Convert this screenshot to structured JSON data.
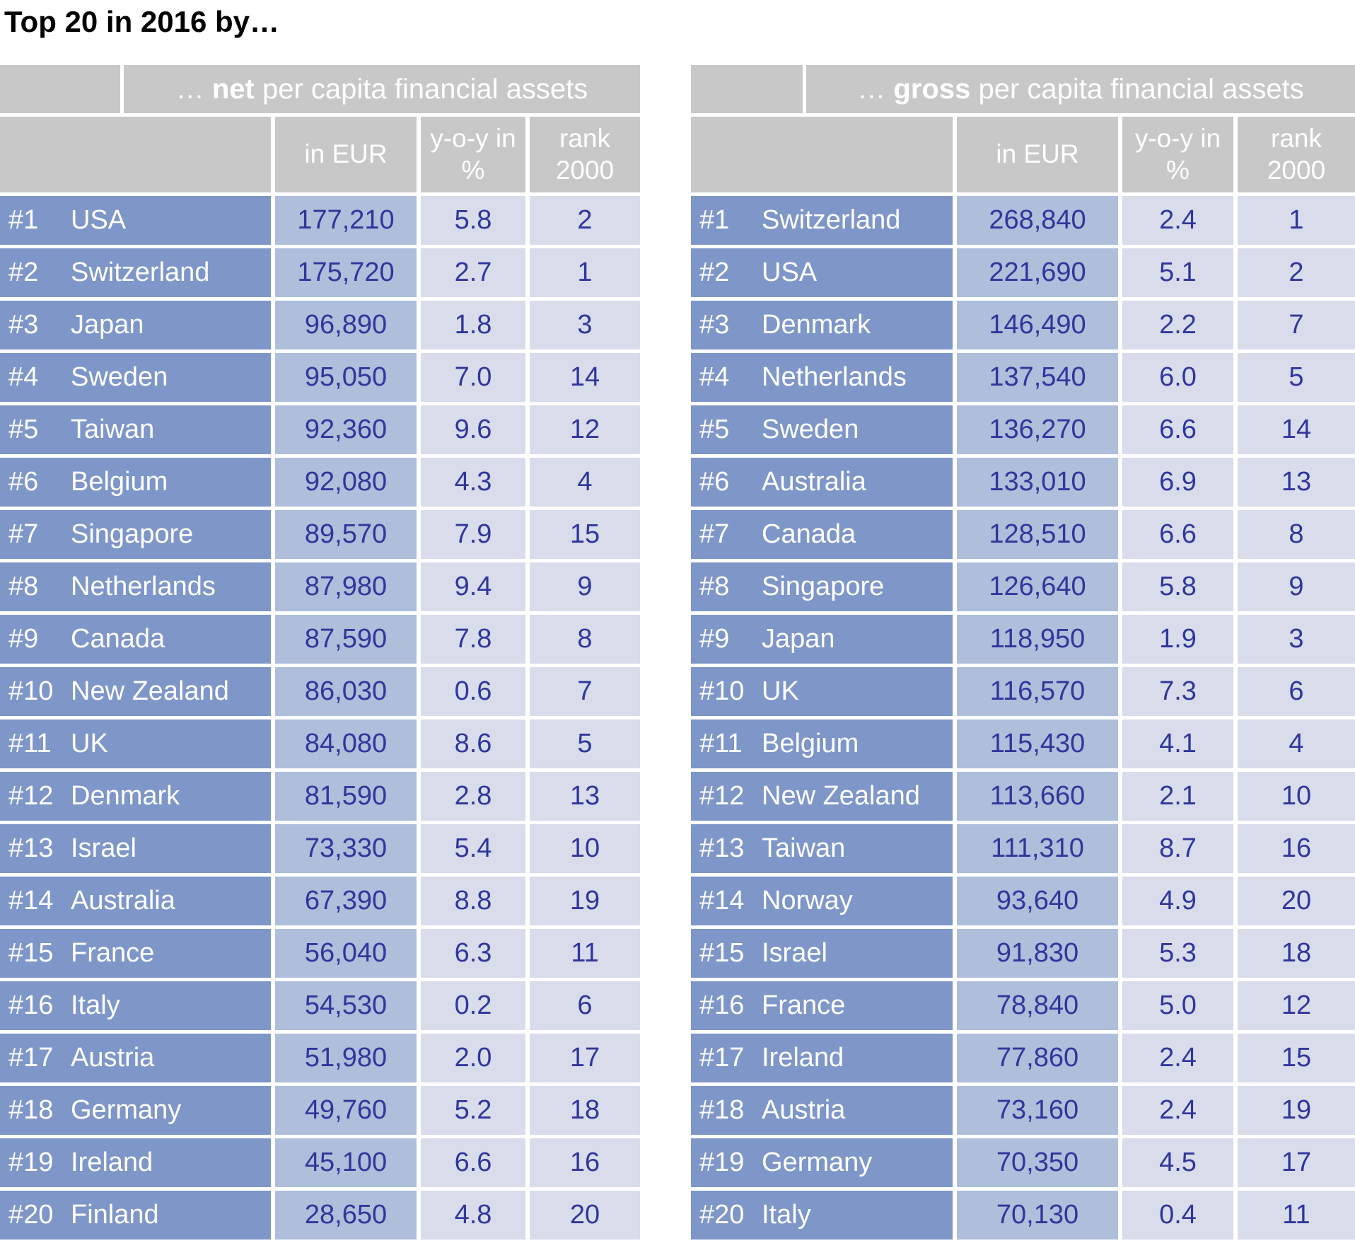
{
  "page_title": "Top 20 in 2016 by…",
  "colors": {
    "header_bg": "#C8C8C8",
    "header_text": "#FFFFFF",
    "country_cell_bg": "#7E96C8",
    "country_text": "#FFFFFF",
    "eur_cell_bg": "#AEBEDB",
    "pct_rank_cell_bg": "#D8DCEB",
    "value_text": "#31369B",
    "page_bg": "#FFFFFF",
    "title_text": "#000000"
  },
  "chart_data": [
    {
      "type": "table",
      "name": "net",
      "title": "… net per capita financial assets",
      "title_prefix": "… ",
      "title_bold": "net",
      "title_suffix": " per capita financial assets",
      "columns": [
        "",
        "in EUR",
        "y-o-y in %",
        "rank 2000"
      ],
      "rows": [
        {
          "pos": "#1",
          "country": "USA",
          "eur": "177,210",
          "yoy": "5.8",
          "rank_2000": "2"
        },
        {
          "pos": "#2",
          "country": "Switzerland",
          "eur": "175,720",
          "yoy": "2.7",
          "rank_2000": "1"
        },
        {
          "pos": "#3",
          "country": "Japan",
          "eur": "96,890",
          "yoy": "1.8",
          "rank_2000": "3"
        },
        {
          "pos": "#4",
          "country": "Sweden",
          "eur": "95,050",
          "yoy": "7.0",
          "rank_2000": "14"
        },
        {
          "pos": "#5",
          "country": "Taiwan",
          "eur": "92,360",
          "yoy": "9.6",
          "rank_2000": "12"
        },
        {
          "pos": "#6",
          "country": "Belgium",
          "eur": "92,080",
          "yoy": "4.3",
          "rank_2000": "4"
        },
        {
          "pos": "#7",
          "country": "Singapore",
          "eur": "89,570",
          "yoy": "7.9",
          "rank_2000": "15"
        },
        {
          "pos": "#8",
          "country": "Netherlands",
          "eur": "87,980",
          "yoy": "9.4",
          "rank_2000": "9"
        },
        {
          "pos": "#9",
          "country": "Canada",
          "eur": "87,590",
          "yoy": "7.8",
          "rank_2000": "8"
        },
        {
          "pos": "#10",
          "country": "New Zealand",
          "eur": "86,030",
          "yoy": "0.6",
          "rank_2000": "7"
        },
        {
          "pos": "#11",
          "country": "UK",
          "eur": "84,080",
          "yoy": "8.6",
          "rank_2000": "5"
        },
        {
          "pos": "#12",
          "country": "Denmark",
          "eur": "81,590",
          "yoy": "2.8",
          "rank_2000": "13"
        },
        {
          "pos": "#13",
          "country": "Israel",
          "eur": "73,330",
          "yoy": "5.4",
          "rank_2000": "10"
        },
        {
          "pos": "#14",
          "country": "Australia",
          "eur": "67,390",
          "yoy": "8.8",
          "rank_2000": "19"
        },
        {
          "pos": "#15",
          "country": "France",
          "eur": "56,040",
          "yoy": "6.3",
          "rank_2000": "11"
        },
        {
          "pos": "#16",
          "country": "Italy",
          "eur": "54,530",
          "yoy": "0.2",
          "rank_2000": "6"
        },
        {
          "pos": "#17",
          "country": "Austria",
          "eur": "51,980",
          "yoy": "2.0",
          "rank_2000": "17"
        },
        {
          "pos": "#18",
          "country": "Germany",
          "eur": "49,760",
          "yoy": "5.2",
          "rank_2000": "18"
        },
        {
          "pos": "#19",
          "country": "Ireland",
          "eur": "45,100",
          "yoy": "6.6",
          "rank_2000": "16"
        },
        {
          "pos": "#20",
          "country": "Finland",
          "eur": "28,650",
          "yoy": "4.8",
          "rank_2000": "20"
        }
      ]
    },
    {
      "type": "table",
      "name": "gross",
      "title": "… gross per capita financial assets",
      "title_prefix": "… ",
      "title_bold": "gross",
      "title_suffix": " per capita financial assets",
      "columns": [
        "",
        "in EUR",
        "y-o-y in %",
        "rank 2000"
      ],
      "rows": [
        {
          "pos": "#1",
          "country": "Switzerland",
          "eur": "268,840",
          "yoy": "2.4",
          "rank_2000": "1"
        },
        {
          "pos": "#2",
          "country": "USA",
          "eur": "221,690",
          "yoy": "5.1",
          "rank_2000": "2"
        },
        {
          "pos": "#3",
          "country": "Denmark",
          "eur": "146,490",
          "yoy": "2.2",
          "rank_2000": "7"
        },
        {
          "pos": "#4",
          "country": "Netherlands",
          "eur": "137,540",
          "yoy": "6.0",
          "rank_2000": "5"
        },
        {
          "pos": "#5",
          "country": "Sweden",
          "eur": "136,270",
          "yoy": "6.6",
          "rank_2000": "14"
        },
        {
          "pos": "#6",
          "country": "Australia",
          "eur": "133,010",
          "yoy": "6.9",
          "rank_2000": "13"
        },
        {
          "pos": "#7",
          "country": "Canada",
          "eur": "128,510",
          "yoy": "6.6",
          "rank_2000": "8"
        },
        {
          "pos": "#8",
          "country": "Singapore",
          "eur": "126,640",
          "yoy": "5.8",
          "rank_2000": "9"
        },
        {
          "pos": "#9",
          "country": "Japan",
          "eur": "118,950",
          "yoy": "1.9",
          "rank_2000": "3"
        },
        {
          "pos": "#10",
          "country": "UK",
          "eur": "116,570",
          "yoy": "7.3",
          "rank_2000": "6"
        },
        {
          "pos": "#11",
          "country": "Belgium",
          "eur": "115,430",
          "yoy": "4.1",
          "rank_2000": "4"
        },
        {
          "pos": "#12",
          "country": "New Zealand",
          "eur": "113,660",
          "yoy": "2.1",
          "rank_2000": "10"
        },
        {
          "pos": "#13",
          "country": "Taiwan",
          "eur": "111,310",
          "yoy": "8.7",
          "rank_2000": "16"
        },
        {
          "pos": "#14",
          "country": "Norway",
          "eur": "93,640",
          "yoy": "4.9",
          "rank_2000": "20"
        },
        {
          "pos": "#15",
          "country": "Israel",
          "eur": "91,830",
          "yoy": "5.3",
          "rank_2000": "18"
        },
        {
          "pos": "#16",
          "country": "France",
          "eur": "78,840",
          "yoy": "5.0",
          "rank_2000": "12"
        },
        {
          "pos": "#17",
          "country": "Ireland",
          "eur": "77,860",
          "yoy": "2.4",
          "rank_2000": "15"
        },
        {
          "pos": "#18",
          "country": "Austria",
          "eur": "73,160",
          "yoy": "2.4",
          "rank_2000": "19"
        },
        {
          "pos": "#19",
          "country": "Germany",
          "eur": "70,350",
          "yoy": "4.5",
          "rank_2000": "17"
        },
        {
          "pos": "#20",
          "country": "Italy",
          "eur": "70,130",
          "yoy": "0.4",
          "rank_2000": "11"
        }
      ]
    }
  ]
}
